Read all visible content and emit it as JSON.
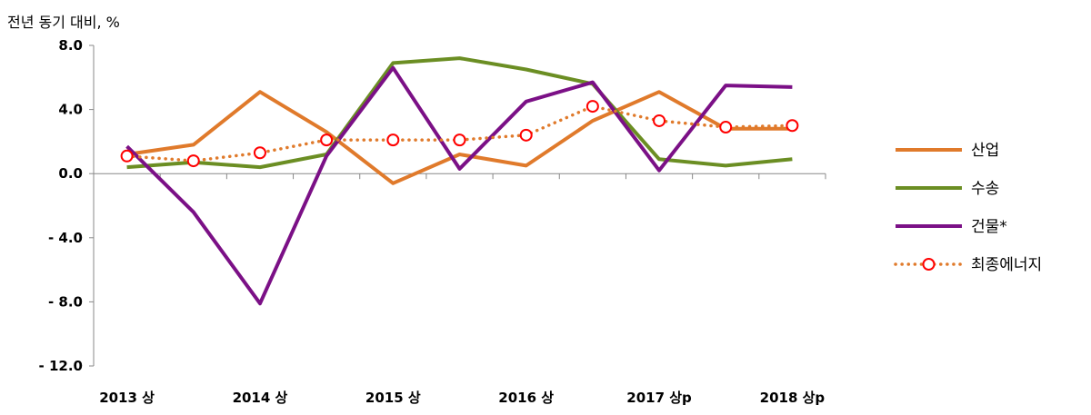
{
  "chart_data": {
    "type": "line",
    "ylabel": "전년 동기 대비, %",
    "ylim": [
      -12.0,
      8.0
    ],
    "yticks": [
      "8.0",
      "4.0",
      "0.0",
      "- 4.0",
      "- 8.0",
      "- 12.0"
    ],
    "ytick_values": [
      8,
      4,
      0,
      -4,
      -8,
      -12
    ],
    "categories": [
      "2013 상",
      "",
      "2014 상",
      "",
      "2015 상",
      "",
      "2016 상",
      "",
      "2017 상p",
      "",
      "2018 상p"
    ],
    "series": [
      {
        "name": "산업",
        "color": "#e07a2b",
        "style": "solid",
        "values": [
          1.2,
          1.8,
          5.1,
          2.6,
          -0.6,
          1.2,
          0.5,
          3.3,
          5.1,
          2.8,
          2.8
        ]
      },
      {
        "name": "수송",
        "color": "#6b8e23",
        "style": "solid",
        "values": [
          0.4,
          0.7,
          0.4,
          1.2,
          6.9,
          7.2,
          6.5,
          5.6,
          0.9,
          0.5,
          0.9
        ]
      },
      {
        "name": "건물*",
        "color": "#7b1086",
        "style": "solid",
        "values": [
          1.7,
          -2.4,
          -8.1,
          1.1,
          6.6,
          0.3,
          4.5,
          5.7,
          0.2,
          5.5,
          5.4
        ]
      },
      {
        "name": "최종에너지",
        "color": "#e07a2b",
        "style": "dotted",
        "marker": "circle",
        "marker_color": "#ff0000",
        "values": [
          1.1,
          0.8,
          1.3,
          2.1,
          2.1,
          2.1,
          2.4,
          4.2,
          3.3,
          2.9,
          3.0
        ]
      }
    ]
  }
}
